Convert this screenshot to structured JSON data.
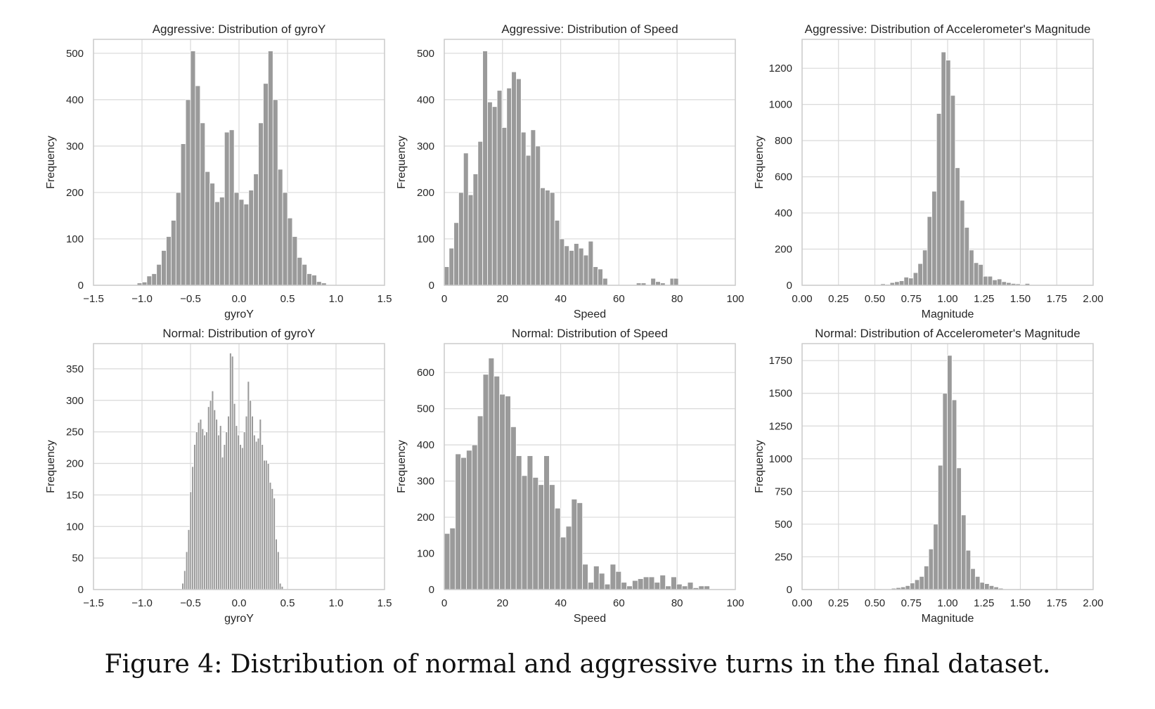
{
  "caption": "Figure 4: Distribution of normal and aggressive turns in the final dataset.",
  "style": {
    "bar_color": "#9a9a9a",
    "bar_edge": "#ffffff",
    "grid_color": "#d9d9d9",
    "frame_color": "#cccccc"
  },
  "chart_data": [
    {
      "type": "bar",
      "title": "Aggressive: Distribution of gyroY",
      "xlabel": "gyroY",
      "ylabel": "Frequency",
      "xlim": [
        -1.5,
        1.5
      ],
      "ylim": [
        0,
        530
      ],
      "xticks": [
        -1.5,
        -1.0,
        -0.5,
        0.0,
        0.5,
        1.0,
        1.5
      ],
      "xtick_labels": [
        "−1.5",
        "−1.0",
        "−0.5",
        "0.0",
        "0.5",
        "1.0",
        "1.5"
      ],
      "yticks": [
        0,
        100,
        200,
        300,
        400,
        500
      ],
      "ytick_labels": [
        "0",
        "100",
        "200",
        "300",
        "400",
        "500"
      ],
      "grid": true,
      "bin_start": -1.05,
      "bin_width": 0.05,
      "values": [
        5,
        7,
        20,
        25,
        45,
        75,
        105,
        140,
        200,
        305,
        400,
        505,
        430,
        350,
        245,
        220,
        180,
        190,
        330,
        335,
        200,
        185,
        175,
        205,
        240,
        350,
        435,
        505,
        400,
        250,
        200,
        145,
        105,
        60,
        45,
        25,
        22,
        8,
        5
      ]
    },
    {
      "type": "bar",
      "title": "Aggressive: Distribution of Speed",
      "xlabel": "Speed",
      "ylabel": "Frequency",
      "xlim": [
        0,
        100
      ],
      "ylim": [
        0,
        530
      ],
      "xticks": [
        0,
        20,
        40,
        60,
        80,
        100
      ],
      "xtick_labels": [
        "0",
        "20",
        "40",
        "60",
        "80",
        "100"
      ],
      "yticks": [
        0,
        100,
        200,
        300,
        400,
        500
      ],
      "ytick_labels": [
        "0",
        "100",
        "200",
        "300",
        "400",
        "500"
      ],
      "grid": true,
      "bin_start": 0,
      "bin_width": 1.65,
      "values": [
        40,
        80,
        135,
        200,
        285,
        195,
        240,
        310,
        505,
        395,
        385,
        420,
        340,
        425,
        460,
        445,
        330,
        280,
        335,
        300,
        210,
        205,
        200,
        140,
        100,
        85,
        75,
        90,
        80,
        65,
        95,
        40,
        35,
        15,
        0,
        0,
        0,
        0,
        0,
        0,
        5,
        5,
        0,
        15,
        8,
        5,
        0,
        15
      ],
      "extra_bars": [
        [
          77.7,
          0
        ],
        [
          78.8,
          15
        ]
      ]
    },
    {
      "type": "bar",
      "title": "Aggressive: Distribution of Accelerometer's Magnitude",
      "xlabel": "Magnitude",
      "ylabel": "Frequency",
      "xlim": [
        0.0,
        2.0
      ],
      "ylim": [
        0,
        1360
      ],
      "xticks": [
        0.0,
        0.25,
        0.5,
        0.75,
        1.0,
        1.25,
        1.5,
        1.75,
        2.0
      ],
      "xtick_labels": [
        "0.00",
        "0.25",
        "0.50",
        "0.75",
        "1.00",
        "1.25",
        "1.50",
        "1.75",
        "2.00"
      ],
      "yticks": [
        0,
        200,
        400,
        600,
        800,
        1000,
        1200
      ],
      "ytick_labels": [
        "0",
        "200",
        "400",
        "600",
        "800",
        "1000",
        "1200"
      ],
      "grid": true,
      "bin_start": 0.54,
      "bin_width": 0.032,
      "values": [
        8,
        5,
        15,
        20,
        25,
        45,
        40,
        70,
        120,
        195,
        380,
        520,
        950,
        1290,
        1245,
        1050,
        650,
        470,
        320,
        195,
        125,
        115,
        50,
        50,
        30,
        35,
        20,
        15,
        10,
        8,
        0,
        10
      ]
    },
    {
      "type": "bar",
      "title": "Normal: Distribution of gyroY",
      "xlabel": "gyroY",
      "ylabel": "Frequency",
      "xlim": [
        -1.5,
        1.5
      ],
      "ylim": [
        0,
        390
      ],
      "xticks": [
        -1.5,
        -1.0,
        -0.5,
        0.0,
        0.5,
        1.0,
        1.5
      ],
      "xtick_labels": [
        "−1.5",
        "−1.0",
        "−0.5",
        "0.0",
        "0.5",
        "1.0",
        "1.5"
      ],
      "yticks": [
        0,
        50,
        100,
        150,
        200,
        250,
        300,
        350
      ],
      "ytick_labels": [
        "0",
        "50",
        "100",
        "150",
        "200",
        "250",
        "300",
        "350"
      ],
      "grid": true,
      "bin_start": -0.59,
      "bin_width": 0.0205,
      "values": [
        10,
        30,
        60,
        95,
        155,
        195,
        230,
        250,
        265,
        270,
        255,
        245,
        250,
        290,
        300,
        315,
        285,
        270,
        245,
        260,
        210,
        230,
        250,
        275,
        375,
        370,
        295,
        260,
        245,
        230,
        225,
        250,
        275,
        330,
        300,
        275,
        245,
        235,
        240,
        270,
        230,
        205,
        205,
        200,
        170,
        160,
        145,
        80,
        60,
        10,
        5
      ]
    },
    {
      "type": "bar",
      "title": "Normal: Distribution of Speed",
      "xlabel": "Speed",
      "ylabel": "Frequency",
      "xlim": [
        0,
        100
      ],
      "ylim": [
        0,
        680
      ],
      "xticks": [
        0,
        20,
        40,
        60,
        80,
        100
      ],
      "xtick_labels": [
        "0",
        "20",
        "40",
        "60",
        "80",
        "100"
      ],
      "yticks": [
        0,
        100,
        200,
        300,
        400,
        500,
        600
      ],
      "ytick_labels": [
        "0",
        "100",
        "200",
        "300",
        "400",
        "500",
        "600"
      ],
      "grid": true,
      "bin_start": 0,
      "bin_width": 1.9,
      "values": [
        155,
        170,
        375,
        365,
        385,
        400,
        480,
        595,
        640,
        590,
        540,
        535,
        450,
        370,
        315,
        370,
        310,
        290,
        370,
        290,
        225,
        145,
        175,
        250,
        240,
        70,
        20,
        65,
        45,
        15,
        70,
        50,
        20,
        10,
        25,
        30,
        35,
        35,
        20,
        40,
        10,
        35,
        15,
        10,
        20,
        5,
        10,
        10
      ]
    },
    {
      "type": "bar",
      "title": "Normal: Distribution of Accelerometer's Magnitude",
      "xlabel": "Magnitude",
      "ylabel": "Frequency",
      "xlim": [
        0.0,
        2.0
      ],
      "ylim": [
        0,
        1880
      ],
      "xticks": [
        0.0,
        0.25,
        0.5,
        0.75,
        1.0,
        1.25,
        1.5,
        1.75,
        2.0
      ],
      "xtick_labels": [
        "0.00",
        "0.25",
        "0.50",
        "0.75",
        "1.00",
        "1.25",
        "1.50",
        "1.75",
        "2.00"
      ],
      "yticks": [
        0,
        250,
        500,
        750,
        1000,
        1250,
        1500,
        1750
      ],
      "ytick_labels": [
        "0",
        "250",
        "500",
        "750",
        "1000",
        "1250",
        "1500",
        "1750"
      ],
      "grid": true,
      "bin_start": 0.55,
      "bin_width": 0.032,
      "values": [
        3,
        5,
        10,
        15,
        20,
        30,
        50,
        75,
        100,
        180,
        310,
        500,
        950,
        1500,
        1790,
        1450,
        930,
        570,
        300,
        160,
        100,
        55,
        45,
        30,
        20,
        10,
        5,
        3,
        2
      ]
    }
  ]
}
